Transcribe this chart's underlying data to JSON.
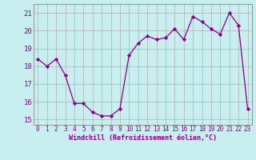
{
  "x": [
    0,
    1,
    2,
    3,
    4,
    5,
    6,
    7,
    8,
    9,
    10,
    11,
    12,
    13,
    14,
    15,
    16,
    17,
    18,
    19,
    20,
    21,
    22,
    23
  ],
  "y": [
    18.4,
    18.0,
    18.4,
    17.5,
    15.9,
    15.9,
    15.4,
    15.2,
    15.2,
    15.6,
    18.6,
    19.3,
    19.7,
    19.5,
    19.6,
    20.1,
    19.5,
    20.8,
    20.5,
    20.1,
    19.8,
    21.0,
    20.3,
    15.6
  ],
  "xlim": [
    -0.5,
    23.5
  ],
  "ylim": [
    14.7,
    21.5
  ],
  "yticks": [
    15,
    16,
    17,
    18,
    19,
    20,
    21
  ],
  "xticks": [
    0,
    1,
    2,
    3,
    4,
    5,
    6,
    7,
    8,
    9,
    10,
    11,
    12,
    13,
    14,
    15,
    16,
    17,
    18,
    19,
    20,
    21,
    22,
    23
  ],
  "xlabel": "Windchill (Refroidissement éolien,°C)",
  "line_color": "#880088",
  "marker": "D",
  "marker_size": 2.2,
  "bg_color": "#c8eef0",
  "grid_color": "#b0b0b0",
  "font_color": "#880088",
  "tick_fontsize": 5.5,
  "xlabel_fontsize": 6.0,
  "ytick_fontsize": 6.5
}
